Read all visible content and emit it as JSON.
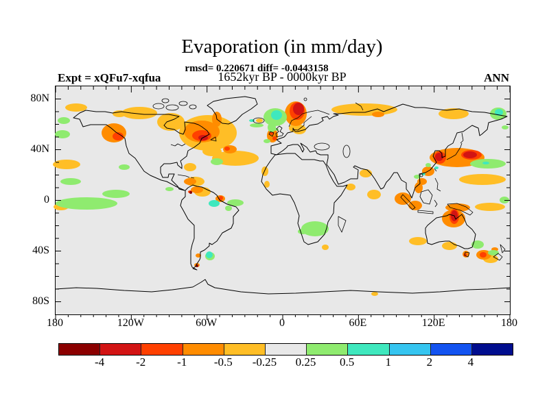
{
  "header": {
    "title": "Evaporation (in mm/day)",
    "stats_line": "rmsd= 0.220671 diff= -0.0443158",
    "period_line": "1652kyr BP - 0000kyr BP",
    "experiment_label": "Expt = xQFu7-xqfua",
    "season_label": "ANN"
  },
  "map": {
    "background_color": "#E8E8E8",
    "coastline_color": "#000000",
    "lat_ticks": [
      {
        "label": "80N",
        "lat": 80
      },
      {
        "label": "40N",
        "lat": 40
      },
      {
        "label": "0",
        "lat": 0
      },
      {
        "label": "40S",
        "lat": -40
      },
      {
        "label": "80S",
        "lat": -80
      }
    ],
    "lon_ticks": [
      {
        "label": "180",
        "lon": -180
      },
      {
        "label": "120W",
        "lon": -120
      },
      {
        "label": "60W",
        "lon": -60
      },
      {
        "label": "0",
        "lon": 0
      },
      {
        "label": "60E",
        "lon": 60
      },
      {
        "label": "120E",
        "lon": 120
      },
      {
        "label": "180",
        "lon": 180
      }
    ]
  },
  "chart_data": {
    "type": "heatmap",
    "projection": "equirectangular world map, 90N-90S / 180W-180E",
    "title": "Evaporation (in mm/day)",
    "subtitle_stats": "rmsd= 0.220671 diff= -0.0443158",
    "subtitle_period": "1652kyr BP - 0000kyr BP",
    "experiment": "Expt = xQFu7-xqfua",
    "season": "ANN",
    "units": "mm/day",
    "rmsd": 0.220671,
    "diff": -0.0443158,
    "lat_tick_labels": [
      "80N",
      "40N",
      "0",
      "40S",
      "80S"
    ],
    "lon_tick_labels": [
      "180",
      "120W",
      "60W",
      "0",
      "60E",
      "120E",
      "180"
    ],
    "colorbar": {
      "boundaries": [
        -4,
        -2,
        -1,
        -0.5,
        -0.25,
        0.25,
        0.5,
        1,
        2,
        4
      ],
      "label_values": [
        "-4",
        "-2",
        "-1",
        "-0.5",
        "-0.25",
        "0.25",
        "0.5",
        "1",
        "2",
        "4"
      ],
      "colors": [
        "#8B0000",
        "#D21414",
        "#FF4000",
        "#FF8C00",
        "#FFBE26",
        "#E8E8E8",
        "#8FEB6F",
        "#3FE8BE",
        "#35C5F0",
        "#1353F0",
        "#000D8E"
      ],
      "legend_position": "bottom"
    },
    "anomaly_regions": [
      {
        "region": "Gulf of Alaska / British Columbia coast",
        "value_band": "-1 to -0.25, core -2 to -1"
      },
      {
        "region": "Hudson Bay / Arctic Canada",
        "value_band": "-0.5 to -0.25"
      },
      {
        "region": "Eastern Canada, Labrador Sea, Newfoundland",
        "value_band": "-1 to -0.5, core -2 to -1"
      },
      {
        "region": "Central North Atlantic band ~40N",
        "value_band": "-0.5 to -0.25"
      },
      {
        "region": "Southwest Greenland coast",
        "value_band": "-1 to -0.5"
      },
      {
        "region": "Norwegian coast / Scandinavia",
        "value_band": "-2 to -1, core -4 to -2"
      },
      {
        "region": "Norwegian Sea west of Norway",
        "value_band": "+0.25 to +1 (green with turquoise core)"
      },
      {
        "region": "British Isles",
        "value_band": "-1 to -0.5 with -2 spots"
      },
      {
        "region": "Baltic region",
        "value_band": "-0.5 to -0.25"
      },
      {
        "region": "Siberian Arctic coast",
        "value_band": "-0.5 to -0.25"
      },
      {
        "region": "Kamchatka / Bering Sea corner",
        "value_band": "-0.5 to -0.25 with +0.25 to +1 patch"
      },
      {
        "region": "Korea / Sea of Japan / east of Japan",
        "value_band": "-2 to -1 cores, -1 to -0.25 fringe"
      },
      {
        "region": "Subtropical NW Pacific east of Japan",
        "value_band": "+0.25 to +0.5 band, -0.5 band south"
      },
      {
        "region": "South China coast",
        "value_band": "-1 to -0.5 with +0.5 to +1 spots"
      },
      {
        "region": "Maritime Continent (Sumatra-Borneo-New Guinea)",
        "value_band": "-1 to -0.5"
      },
      {
        "region": "Northern Australia (Top End)",
        "value_band": "-2 to -1"
      },
      {
        "region": "Southern Australia coast / Tasmania",
        "value_band": "-0.5 with -2 spot on Tasmania"
      },
      {
        "region": "Tasman Sea east of Tasmania",
        "value_band": "-2 to -1"
      },
      {
        "region": "East of Australia / near New Zealand",
        "value_band": "+0.25 to +0.5"
      },
      {
        "region": "Equatorial central Pacific",
        "value_band": "+0.25 to +0.5 lenses"
      },
      {
        "region": "Guyana coast, NE South America",
        "value_band": "+0.5 to +1 patch beside -2 to -1 spot"
      },
      {
        "region": "Patagonia",
        "value_band": "+0.5 to +1 patch with -1 and -4 spots"
      },
      {
        "region": "Southern Africa",
        "value_band": "+0.25 to +0.5"
      },
      {
        "region": "Caribbean / Central America",
        "value_band": "-1 to -0.25"
      },
      {
        "region": "Equatorial Atlantic off Brazil",
        "value_band": "+0.25 to +0.5"
      }
    ]
  }
}
